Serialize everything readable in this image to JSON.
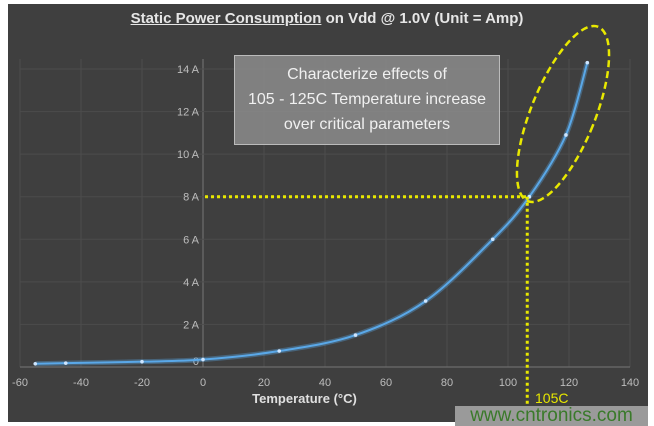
{
  "chart_data": {
    "type": "line",
    "title_underlined": "Static Power Consumption",
    "title_rest": " on Vdd @ 1.0V (Unit = Amp)",
    "xlabel": "Temperature (°C)",
    "ylabel": "",
    "xlim": [
      -60,
      140
    ],
    "ylim": [
      0,
      14
    ],
    "grid": true,
    "x_ticks": [
      "-60",
      "-40",
      "-20",
      "0",
      "20",
      "40",
      "60",
      "80",
      "100",
      "120",
      "140"
    ],
    "y_ticks": [
      "0",
      "2 A",
      "4 A",
      "6 A",
      "8 A",
      "10 A",
      "12 A",
      "14 A"
    ],
    "series": [
      {
        "x": [
          -55,
          -45,
          -20,
          0,
          25,
          50,
          73,
          95,
          107,
          119,
          126
        ],
        "y": [
          0.15,
          0.18,
          0.25,
          0.35,
          0.75,
          1.5,
          3.1,
          6.0,
          8.0,
          10.9,
          14.3
        ]
      }
    ],
    "colors": {
      "line": "#5aa8e8",
      "highlight": "#e8e800",
      "background": "#3f3f3f"
    },
    "annotation": {
      "lines": [
        "Characterize effects of",
        "105 - 125C Temperature increase",
        "over critical parameters"
      ],
      "marker_label": "105C",
      "marker_x": 105,
      "marker_y": 8
    }
  },
  "watermark": "www.cntronics.com"
}
